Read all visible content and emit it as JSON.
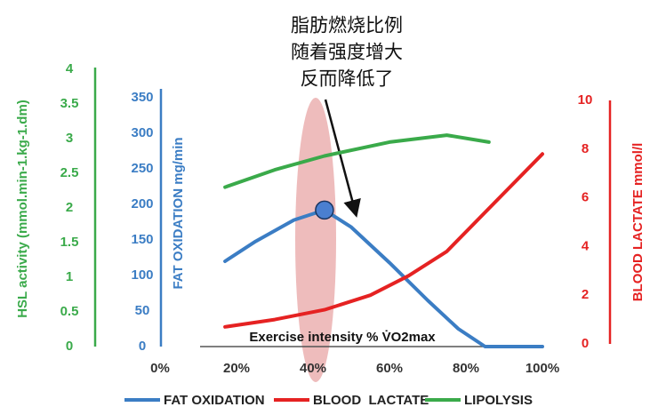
{
  "chart_data": {
    "type": "line",
    "annotations": [
      "脂肪燃烧比例",
      "随着强度增大",
      "反而降低了"
    ],
    "x_label": "Exercise intensity % V̇O2max",
    "y_label": "FAT OXIDATION mg/min",
    "y2_label": "BLOOD LACTATE mmol/l",
    "y3_label": "HSL activity (mmol.min-1.kg-1.dm)",
    "xlim": [
      0,
      100
    ],
    "xticks": [
      {
        "value": 0,
        "label": "0%"
      },
      {
        "value": 20,
        "label": "20%"
      },
      {
        "value": 40,
        "label": "40%"
      },
      {
        "value": 60,
        "label": "60%"
      },
      {
        "value": 80,
        "label": "80%"
      },
      {
        "value": 100,
        "label": "100%"
      }
    ],
    "ylim": [
      0,
      350
    ],
    "yticks": [
      0,
      50,
      100,
      150,
      200,
      250,
      300,
      350
    ],
    "y2lim": [
      0,
      10
    ],
    "y2ticks": [
      0,
      2,
      4,
      6,
      8,
      10
    ],
    "y3lim": [
      0,
      4
    ],
    "y3ticks": [
      0,
      0.5,
      1,
      1.5,
      2,
      2.5,
      3,
      3.5,
      4
    ],
    "series": [
      {
        "name": "FAT OXIDATION",
        "color": "#3b7dc4",
        "axis": "y",
        "x": [
          17,
          25,
          35,
          43,
          50,
          60,
          70,
          78,
          85,
          100
        ],
        "values": [
          120,
          148,
          178,
          192,
          168,
          118,
          65,
          25,
          0,
          0
        ]
      },
      {
        "name": "BLOOD  LACTATE",
        "color": "#e52222",
        "axis": "y2",
        "x": [
          17,
          30,
          43,
          55,
          65,
          75,
          85,
          100
        ],
        "values": [
          0.7,
          1.0,
          1.4,
          2.0,
          2.8,
          3.8,
          5.4,
          7.8
        ]
      },
      {
        "name": "LIPOLYSIS",
        "color": "#3aaa4a",
        "axis": "y3",
        "x": [
          17,
          30,
          43,
          60,
          75,
          86
        ],
        "values": [
          2.3,
          2.55,
          2.75,
          2.95,
          3.05,
          2.95
        ]
      }
    ]
  }
}
